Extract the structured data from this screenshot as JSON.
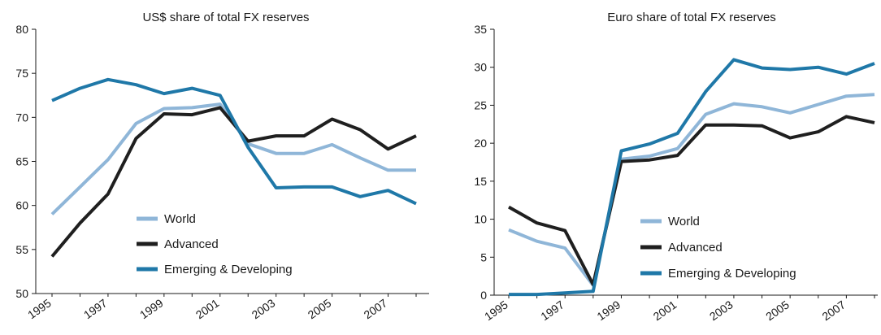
{
  "chart_data": [
    {
      "type": "line",
      "title": "US$ share of total FX reserves",
      "xlabel": "",
      "ylabel": "",
      "x": [
        1995,
        1996,
        1997,
        1998,
        1999,
        2000,
        2001,
        2002,
        2003,
        2004,
        2005,
        2006,
        2007,
        2008
      ],
      "xticks": [
        "1995",
        "1997",
        "1999",
        "2001",
        "2003",
        "2005",
        "2007"
      ],
      "ylim": [
        50,
        80
      ],
      "yticks": [
        "50",
        "55",
        "60",
        "65",
        "70",
        "75",
        "80"
      ],
      "legend_position": "bottom-left",
      "grid": false,
      "series": [
        {
          "name": "World",
          "color": "#8fb6d8",
          "values": [
            59.0,
            62.1,
            65.2,
            69.3,
            71.0,
            71.1,
            71.5,
            67.0,
            65.9,
            65.9,
            66.9,
            65.4,
            64.0,
            64.0
          ]
        },
        {
          "name": "Advanced",
          "color": "#1f1f1f",
          "values": [
            54.2,
            58.0,
            61.3,
            67.6,
            70.4,
            70.3,
            71.1,
            67.3,
            67.9,
            67.9,
            69.8,
            68.6,
            66.4,
            67.9
          ]
        },
        {
          "name": "Emerging & Developing",
          "color": "#1f78a8",
          "values": [
            71.9,
            73.3,
            74.3,
            73.7,
            72.7,
            73.3,
            72.5,
            66.6,
            62.0,
            62.1,
            62.1,
            61.0,
            61.7,
            60.2
          ]
        }
      ]
    },
    {
      "type": "line",
      "title": "Euro share of total FX reserves",
      "xlabel": "",
      "ylabel": "",
      "x": [
        1995,
        1996,
        1997,
        1998,
        1999,
        2000,
        2001,
        2002,
        2003,
        2004,
        2005,
        2006,
        2007,
        2008
      ],
      "xticks": [
        "1995",
        "1997",
        "1999",
        "2001",
        "2003",
        "2005",
        "2007"
      ],
      "ylim": [
        0,
        35
      ],
      "yticks": [
        "0",
        "5",
        "10",
        "15",
        "20",
        "25",
        "30",
        "35"
      ],
      "legend_position": "bottom-right",
      "grid": false,
      "series": [
        {
          "name": "World",
          "color": "#8fb6d8",
          "values": [
            8.6,
            7.1,
            6.2,
            1.3,
            17.9,
            18.3,
            19.3,
            23.8,
            25.2,
            24.8,
            24.0,
            25.1,
            26.2,
            26.4
          ]
        },
        {
          "name": "Advanced",
          "color": "#1f1f1f",
          "values": [
            11.6,
            9.5,
            8.5,
            1.4,
            17.6,
            17.8,
            18.4,
            22.4,
            22.4,
            22.3,
            20.7,
            21.5,
            23.5,
            22.7
          ]
        },
        {
          "name": "Emerging & Developing",
          "color": "#1f78a8",
          "values": [
            0.1,
            0.1,
            0.3,
            0.5,
            19.0,
            19.9,
            21.3,
            26.8,
            31.0,
            29.9,
            29.7,
            30.0,
            29.1,
            30.5
          ]
        }
      ]
    }
  ]
}
